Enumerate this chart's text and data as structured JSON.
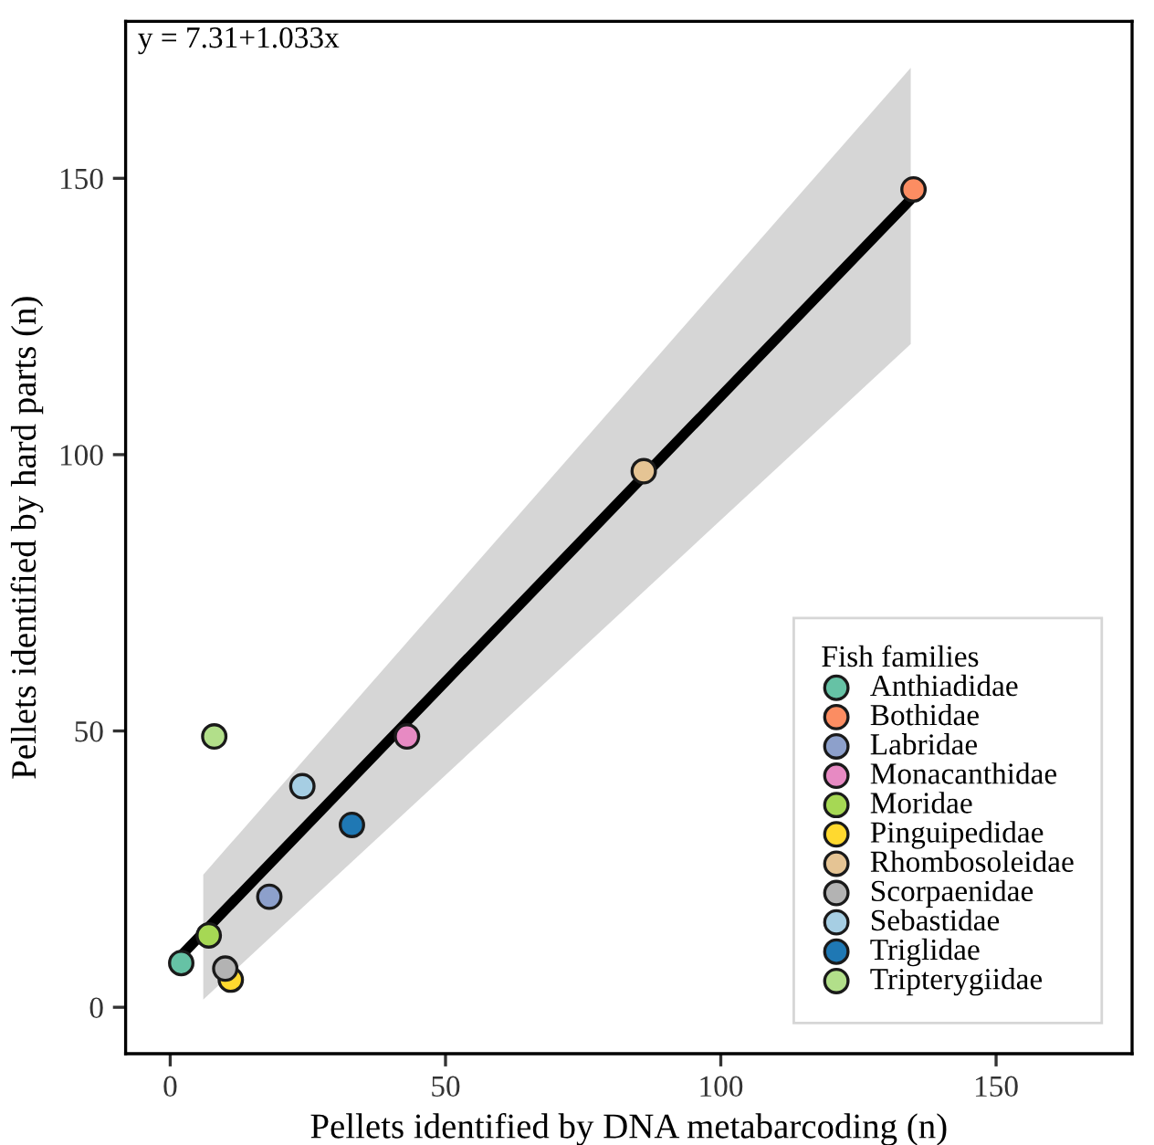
{
  "chart_data": {
    "type": "scatter",
    "xlabel": "Pellets identified by DNA metabarcoding (n)",
    "ylabel": "Pellets identified by hard parts (n)",
    "legend_title": "Fish families",
    "legend": "bottom right",
    "marker": "circle",
    "grid": false,
    "annotations": [
      "y = 7.31+1.033x"
    ],
    "xlim": [
      -8.1,
      174.7
    ],
    "ylim": [
      -8.4,
      178.4
    ],
    "xticks": [
      0,
      50,
      100,
      150
    ],
    "yticks": [
      0,
      50,
      100,
      150
    ],
    "series": [
      {
        "type": "line",
        "marker": "none",
        "color": "#000000",
        "x": [
          2,
          6,
          134.5,
          135
        ],
        "values": [
          9.4,
          13.5,
          146.2,
          146.8
        ],
        "lower": [
          null,
          1.4,
          120,
          null
        ],
        "upper": [
          null,
          24,
          170,
          null
        ]
      },
      {
        "name": "Anthiadidae",
        "color": "#66c2a5",
        "x": [
          2
        ],
        "values": [
          8
        ]
      },
      {
        "name": "Bothidae",
        "color": "#fc8d62",
        "x": [
          135
        ],
        "values": [
          148
        ]
      },
      {
        "name": "Labridae",
        "color": "#8da0cb",
        "x": [
          18
        ],
        "values": [
          20
        ]
      },
      {
        "name": "Monacanthidae",
        "color": "#e78ac3",
        "x": [
          43
        ],
        "values": [
          49
        ]
      },
      {
        "name": "Moridae",
        "color": "#a6d854",
        "x": [
          7
        ],
        "values": [
          13
        ]
      },
      {
        "name": "Pinguipedidae",
        "color": "#ffd92f",
        "x": [
          11
        ],
        "values": [
          5
        ]
      },
      {
        "name": "Rhombosoleidae",
        "color": "#e5c494",
        "x": [
          86
        ],
        "values": [
          97
        ]
      },
      {
        "name": "Scorpaenidae",
        "color": "#b3b3b3",
        "x": [
          10
        ],
        "values": [
          7
        ]
      },
      {
        "name": "Sebastidae",
        "color": "#a6cee3",
        "x": [
          24
        ],
        "values": [
          40
        ]
      },
      {
        "name": "Triglidae",
        "color": "#1f78b4",
        "x": [
          33
        ],
        "values": [
          33
        ]
      },
      {
        "name": "Tripterygiidae",
        "color": "#b2df8a",
        "x": [
          8
        ],
        "values": [
          49
        ]
      }
    ]
  }
}
